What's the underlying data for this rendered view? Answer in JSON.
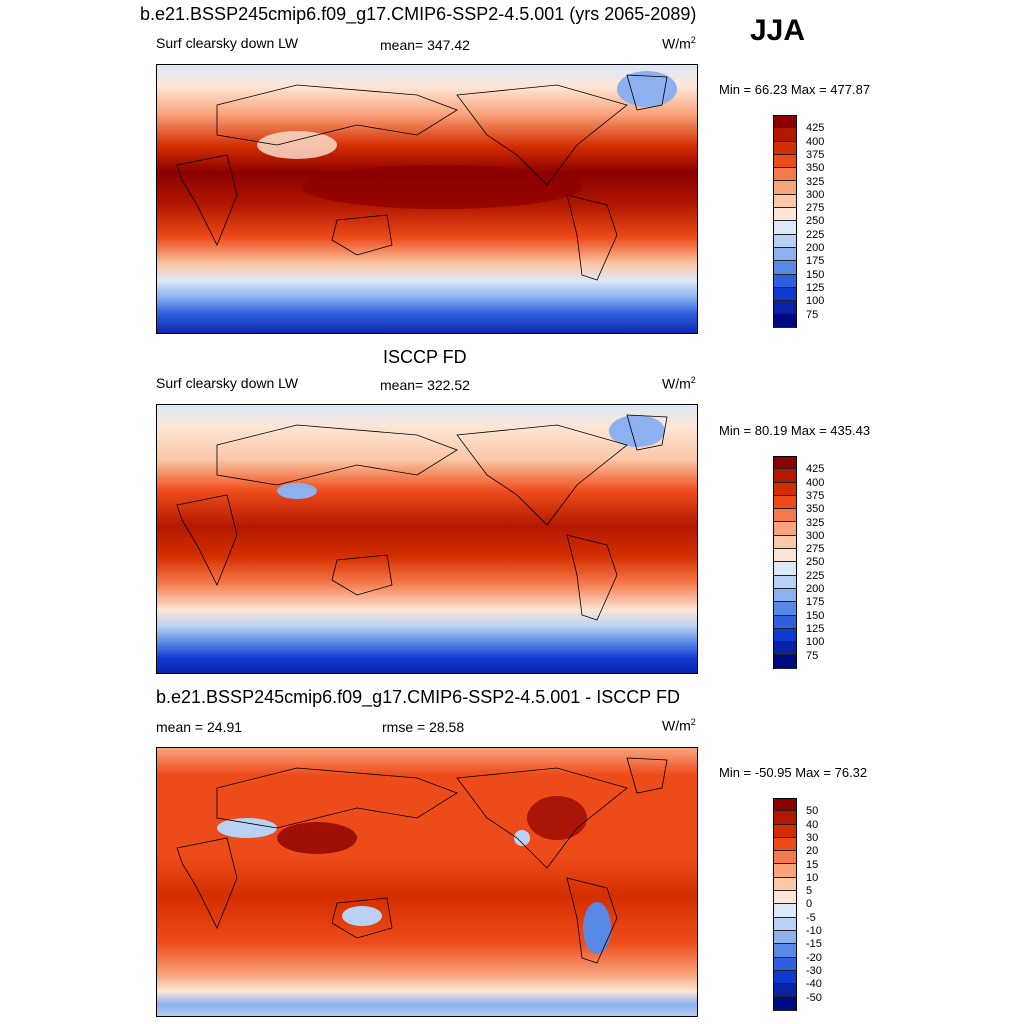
{
  "figure": {
    "top_title": "b.e21.BSSP245cmip6.f09_g17.CMIP6-SSP2-4.5.001 (yrs 2065-2089)",
    "season": "JJA"
  },
  "panels": [
    {
      "id": "model",
      "variable": "Surf clearsky down LW",
      "stat": "mean= 347.42",
      "units": "W/m",
      "units_sup": "2",
      "minmax": "Min =  66.23 Max = 477.87",
      "colorbar_labels": [
        "425",
        "400",
        "375",
        "350",
        "325",
        "300",
        "275",
        "250",
        "225",
        "200",
        "175",
        "150",
        "125",
        "100",
        "75"
      ],
      "colorbar_colors": [
        "#8b0000",
        "#b21800",
        "#d42e00",
        "#ee4b1a",
        "#f57a4b",
        "#f9a47d",
        "#fbc8a8",
        "#fde6d5",
        "#dbe9f9",
        "#b9d2f3",
        "#8cb1ee",
        "#5a88e5",
        "#2f5fe0",
        "#0f3ad2",
        "#0a22a8",
        "#000a80"
      ]
    },
    {
      "id": "obs",
      "title": "ISCCP FD",
      "variable": "Surf clearsky down LW",
      "stat": "mean= 322.52",
      "units": "W/m",
      "units_sup": "2",
      "minmax": "Min =  80.19 Max = 435.43",
      "colorbar_labels": [
        "425",
        "400",
        "375",
        "350",
        "325",
        "300",
        "275",
        "250",
        "225",
        "200",
        "175",
        "150",
        "125",
        "100",
        "75"
      ],
      "colorbar_colors": [
        "#8b0000",
        "#b21800",
        "#d42e00",
        "#ee4b1a",
        "#f57a4b",
        "#f9a47d",
        "#fbc8a8",
        "#fde6d5",
        "#dbe9f9",
        "#b9d2f3",
        "#8cb1ee",
        "#5a88e5",
        "#2f5fe0",
        "#0f3ad2",
        "#0a22a8",
        "#000a80"
      ]
    },
    {
      "id": "diff",
      "title": "b.e21.BSSP245cmip6.f09_g17.CMIP6-SSP2-4.5.001 - ISCCP FD",
      "stat_left": "mean =  24.91",
      "stat": "rmse =  28.58",
      "units": "W/m",
      "units_sup": "2",
      "minmax": "Min = -50.95 Max =  76.32",
      "colorbar_labels": [
        "50",
        "40",
        "30",
        "20",
        "15",
        "10",
        "5",
        "0",
        "-5",
        "-10",
        "-15",
        "-20",
        "-30",
        "-40",
        "-50"
      ],
      "colorbar_colors": [
        "#8b0000",
        "#b21800",
        "#d42e00",
        "#ee4b1a",
        "#f57a4b",
        "#f9a47d",
        "#fbc8a8",
        "#fde6d5",
        "#dbe9f9",
        "#b9d2f3",
        "#8cb1ee",
        "#5a88e5",
        "#2f5fe0",
        "#0f3ad2",
        "#0a22a8",
        "#000a80"
      ]
    }
  ]
}
